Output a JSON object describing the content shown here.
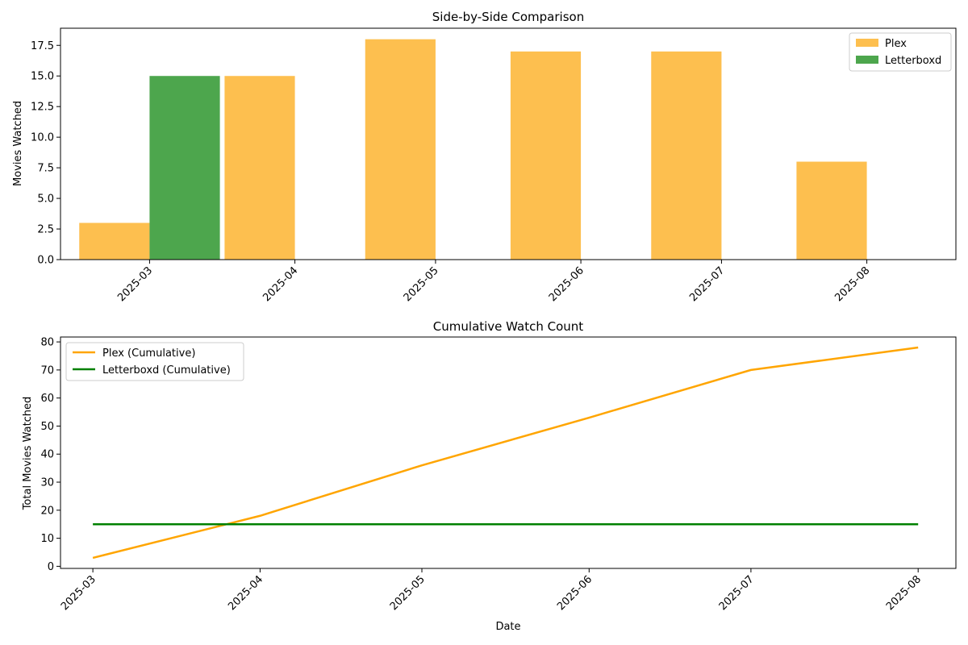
{
  "chart_data": [
    {
      "type": "bar",
      "title": "Side-by-Side Comparison",
      "xlabel": "",
      "ylabel": "Movies Watched",
      "ylim": [
        0,
        18.9
      ],
      "yticks": [
        "0.0",
        "2.5",
        "5.0",
        "7.5",
        "10.0",
        "12.5",
        "15.0",
        "17.5"
      ],
      "x_ticks": [
        "2025-03-01",
        "2025-04-01",
        "2025-05-01",
        "2025-06-01",
        "2025-07-01",
        "2025-08-01"
      ],
      "x_tick_labels": [
        "2025-03",
        "2025-04",
        "2025-05",
        "2025-06",
        "2025-07",
        "2025-08"
      ],
      "legend_position": "top-right",
      "series": [
        {
          "name": "Plex",
          "color": "#fdbf4f",
          "bars": [
            {
              "date": "2025-03-01",
              "value": 3,
              "side": "left"
            },
            {
              "date": "2025-04-01",
              "value": 15,
              "side": "left"
            },
            {
              "date": "2025-05-01",
              "value": 18,
              "side": "left"
            },
            {
              "date": "2025-06-01",
              "value": 17,
              "side": "left"
            },
            {
              "date": "2025-07-01",
              "value": 17,
              "side": "left"
            },
            {
              "date": "2025-08-01",
              "value": 8,
              "side": "left"
            }
          ]
        },
        {
          "name": "Letterboxd",
          "color": "#4da64d",
          "bars": [
            {
              "date": "2025-03-01",
              "value": 15,
              "side": "right"
            }
          ]
        }
      ]
    },
    {
      "type": "line",
      "title": "Cumulative Watch Count",
      "xlabel": "Date",
      "ylabel": "Total Movies Watched",
      "ylim": [
        -0.75,
        81.75
      ],
      "yticks": [
        "0",
        "10",
        "20",
        "30",
        "40",
        "50",
        "60",
        "70",
        "80"
      ],
      "x_ticks": [
        "2025-03-01",
        "2025-04-01",
        "2025-05-01",
        "2025-06-01",
        "2025-07-01",
        "2025-08-01"
      ],
      "x_tick_labels": [
        "2025-03",
        "2025-04",
        "2025-05",
        "2025-06",
        "2025-07",
        "2025-08"
      ],
      "legend_position": "top-left",
      "series": [
        {
          "name": "Plex (Cumulative)",
          "color": "#ffa500",
          "x": [
            "2025-03-01",
            "2025-04-01",
            "2025-05-01",
            "2025-06-01",
            "2025-07-01",
            "2025-08-01"
          ],
          "y": [
            3,
            18,
            36,
            53,
            70,
            78
          ]
        },
        {
          "name": "Letterboxd (Cumulative)",
          "color": "#008000",
          "x": [
            "2025-03-01",
            "2025-04-01",
            "2025-05-01",
            "2025-06-01",
            "2025-07-01",
            "2025-08-01"
          ],
          "y": [
            15,
            15,
            15,
            15,
            15,
            15
          ]
        }
      ]
    }
  ]
}
